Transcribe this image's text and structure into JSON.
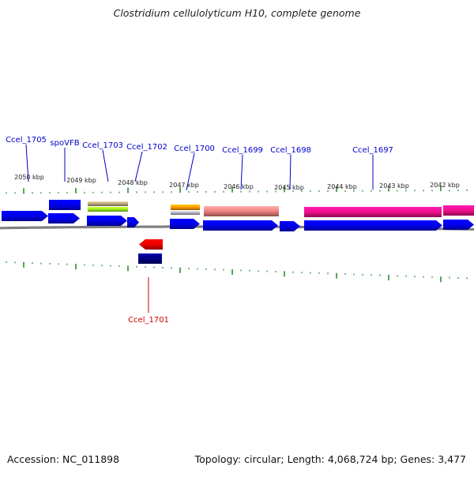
{
  "title": "Clostridium cellulolyticum H10, complete genome",
  "footer": {
    "accession": "Accession: NC_011898",
    "topology": "Topology: circular; Length: 4,068,724 bp; Genes: 3,477"
  },
  "colors": {
    "gene_forward": "#0000ee",
    "gene_reverse": "#ee0000",
    "label_forward": "#0000cc",
    "label_reverse": "#cc0000",
    "tick": "#2e8b2e",
    "backbone": "#808080",
    "orange_feature": "#ff9900",
    "olive_feature": "#b5a57a",
    "lime_feature": "#99ee22",
    "salmon_feature": "#f08080",
    "magenta_feature": "#ee1188",
    "navy_feature": "#000080"
  },
  "kbp_labels": [
    "2050 kbp",
    "2049 kbp",
    "2048 kbp",
    "2047 kbp",
    "2046 kbp",
    "2045 kbp",
    "2044 kbp",
    "2043 kbp",
    "2042 kbp"
  ],
  "gene_labels": {
    "top": [
      "Ccel_1705",
      "spoVFB",
      "Ccel_1703",
      "Ccel_1702",
      "Ccel_1700",
      "Ccel_1699",
      "Ccel_1698",
      "Ccel_1697"
    ],
    "bottom": [
      "Ccel_1701"
    ]
  }
}
